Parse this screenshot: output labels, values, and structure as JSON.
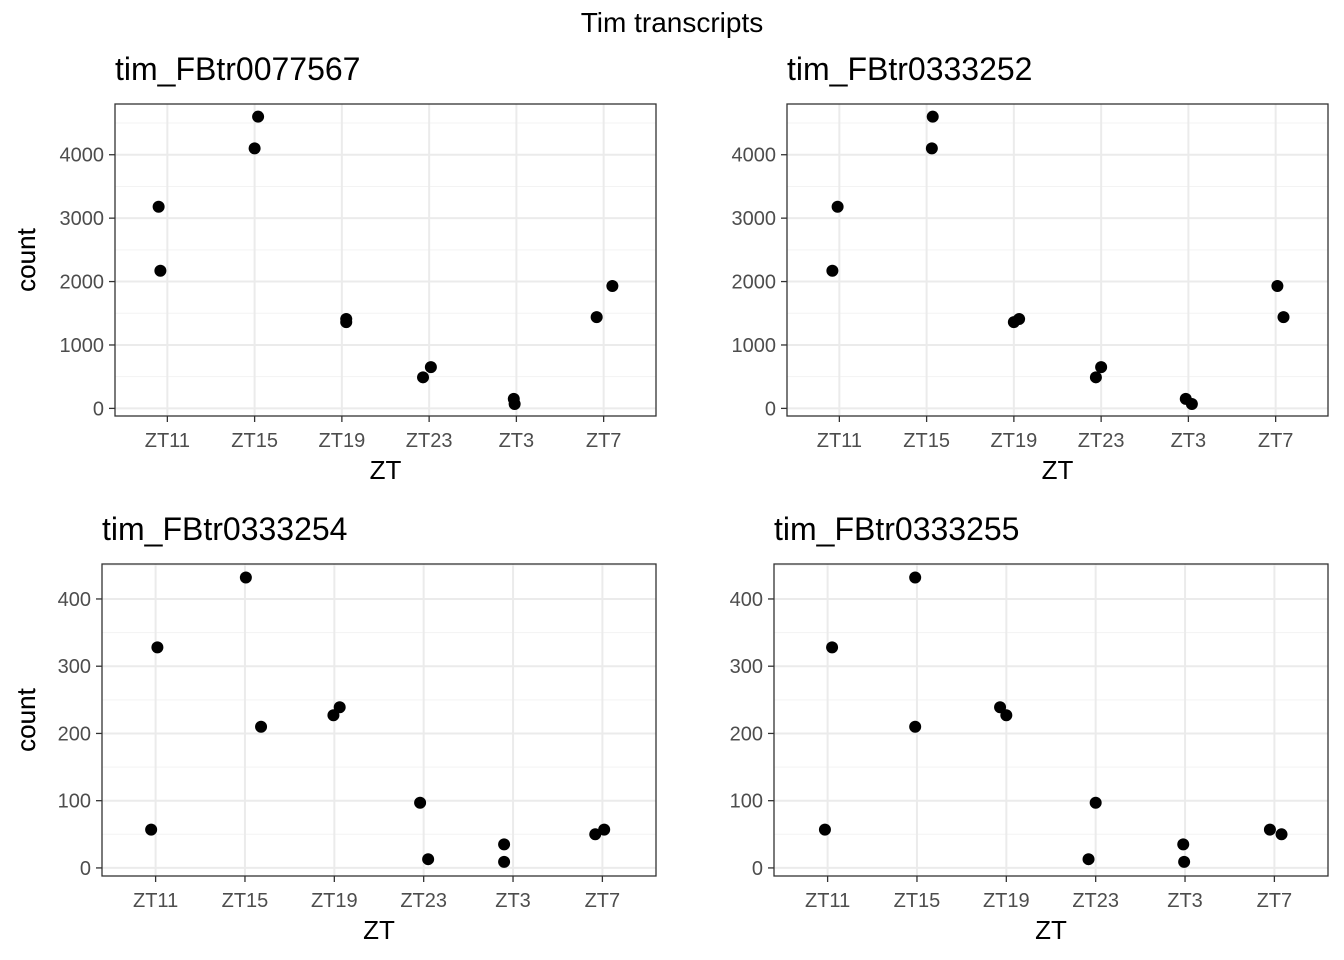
{
  "figure": {
    "title": "Tim transcripts"
  },
  "chart_data": [
    {
      "type": "scatter",
      "title": "tim_FBtr0077567",
      "xlabel": "ZT",
      "ylabel": "count",
      "categories": [
        "ZT11",
        "ZT15",
        "ZT19",
        "ZT23",
        "ZT3",
        "ZT7"
      ],
      "ylim": [
        -120,
        4800
      ],
      "yticks": [
        0,
        1000,
        2000,
        3000,
        4000
      ],
      "grid": true,
      "points": [
        {
          "x": "ZT11",
          "jitter": -0.1,
          "y": 3180
        },
        {
          "x": "ZT11",
          "jitter": -0.08,
          "y": 2170
        },
        {
          "x": "ZT15",
          "jitter": 0.04,
          "y": 4600
        },
        {
          "x": "ZT15",
          "jitter": 0.0,
          "y": 4100
        },
        {
          "x": "ZT19",
          "jitter": 0.05,
          "y": 1410
        },
        {
          "x": "ZT19",
          "jitter": 0.05,
          "y": 1360
        },
        {
          "x": "ZT23",
          "jitter": -0.07,
          "y": 490
        },
        {
          "x": "ZT23",
          "jitter": 0.02,
          "y": 650
        },
        {
          "x": "ZT3",
          "jitter": -0.03,
          "y": 150
        },
        {
          "x": "ZT3",
          "jitter": -0.02,
          "y": 70
        },
        {
          "x": "ZT7",
          "jitter": -0.08,
          "y": 1440
        },
        {
          "x": "ZT7",
          "jitter": 0.1,
          "y": 1930
        }
      ]
    },
    {
      "type": "scatter",
      "title": "tim_FBtr0333252",
      "xlabel": "ZT",
      "ylabel": "count",
      "categories": [
        "ZT11",
        "ZT15",
        "ZT19",
        "ZT23",
        "ZT3",
        "ZT7"
      ],
      "ylim": [
        -120,
        4800
      ],
      "yticks": [
        0,
        1000,
        2000,
        3000,
        4000
      ],
      "grid": true,
      "points": [
        {
          "x": "ZT11",
          "jitter": -0.08,
          "y": 2170
        },
        {
          "x": "ZT11",
          "jitter": -0.02,
          "y": 3180
        },
        {
          "x": "ZT15",
          "jitter": 0.07,
          "y": 4600
        },
        {
          "x": "ZT15",
          "jitter": 0.06,
          "y": 4100
        },
        {
          "x": "ZT19",
          "jitter": 0.0,
          "y": 1360
        },
        {
          "x": "ZT19",
          "jitter": 0.06,
          "y": 1410
        },
        {
          "x": "ZT23",
          "jitter": -0.06,
          "y": 490
        },
        {
          "x": "ZT23",
          "jitter": 0.0,
          "y": 650
        },
        {
          "x": "ZT3",
          "jitter": -0.03,
          "y": 150
        },
        {
          "x": "ZT3",
          "jitter": 0.04,
          "y": 70
        },
        {
          "x": "ZT7",
          "jitter": 0.02,
          "y": 1930
        },
        {
          "x": "ZT7",
          "jitter": 0.09,
          "y": 1440
        }
      ]
    },
    {
      "type": "scatter",
      "title": "tim_FBtr0333254",
      "xlabel": "ZT",
      "ylabel": "count",
      "categories": [
        "ZT11",
        "ZT15",
        "ZT19",
        "ZT23",
        "ZT3",
        "ZT7"
      ],
      "ylim": [
        -12,
        452
      ],
      "yticks": [
        0,
        100,
        200,
        300,
        400
      ],
      "grid": true,
      "points": [
        {
          "x": "ZT11",
          "jitter": -0.05,
          "y": 57
        },
        {
          "x": "ZT11",
          "jitter": 0.02,
          "y": 328
        },
        {
          "x": "ZT15",
          "jitter": 0.01,
          "y": 432
        },
        {
          "x": "ZT15",
          "jitter": 0.18,
          "y": 210
        },
        {
          "x": "ZT19",
          "jitter": -0.01,
          "y": 227
        },
        {
          "x": "ZT19",
          "jitter": 0.06,
          "y": 239
        },
        {
          "x": "ZT23",
          "jitter": -0.04,
          "y": 97
        },
        {
          "x": "ZT23",
          "jitter": 0.05,
          "y": 13
        },
        {
          "x": "ZT3",
          "jitter": -0.1,
          "y": 35
        },
        {
          "x": "ZT3",
          "jitter": -0.1,
          "y": 9
        },
        {
          "x": "ZT7",
          "jitter": -0.08,
          "y": 50
        },
        {
          "x": "ZT7",
          "jitter": 0.02,
          "y": 57
        }
      ]
    },
    {
      "type": "scatter",
      "title": "tim_FBtr0333255",
      "xlabel": "ZT",
      "ylabel": "count",
      "categories": [
        "ZT11",
        "ZT15",
        "ZT19",
        "ZT23",
        "ZT3",
        "ZT7"
      ],
      "ylim": [
        -12,
        452
      ],
      "yticks": [
        0,
        100,
        200,
        300,
        400
      ],
      "grid": true,
      "points": [
        {
          "x": "ZT11",
          "jitter": -0.03,
          "y": 57
        },
        {
          "x": "ZT11",
          "jitter": 0.05,
          "y": 328
        },
        {
          "x": "ZT15",
          "jitter": -0.02,
          "y": 432
        },
        {
          "x": "ZT15",
          "jitter": -0.02,
          "y": 210
        },
        {
          "x": "ZT19",
          "jitter": -0.07,
          "y": 239
        },
        {
          "x": "ZT19",
          "jitter": 0.0,
          "y": 227
        },
        {
          "x": "ZT23",
          "jitter": -0.08,
          "y": 13
        },
        {
          "x": "ZT23",
          "jitter": 0.0,
          "y": 97
        },
        {
          "x": "ZT3",
          "jitter": -0.02,
          "y": 35
        },
        {
          "x": "ZT3",
          "jitter": -0.01,
          "y": 9
        },
        {
          "x": "ZT7",
          "jitter": -0.05,
          "y": 57
        },
        {
          "x": "ZT7",
          "jitter": 0.08,
          "y": 50
        }
      ]
    }
  ]
}
